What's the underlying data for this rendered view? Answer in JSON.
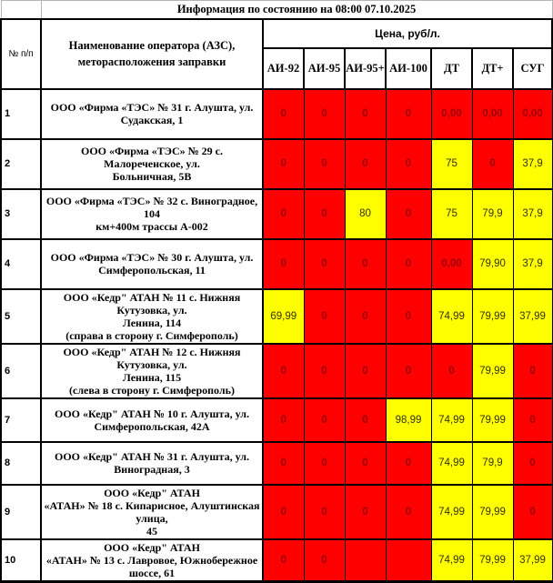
{
  "title": "Информация по состоянию на 08:00 07.10.2025",
  "header": {
    "num": "№ п/п",
    "name": "Наименование оператора (АЗС), меторасположения заправки",
    "price_group": "Цена, руб/л.",
    "fuels": [
      "АИ-92",
      "АИ-95",
      "АИ-95+",
      "АИ-100",
      "ДТ",
      "ДТ+",
      "СУГ"
    ]
  },
  "colors": {
    "unavailable_bg": "#FF0000",
    "unavailable_text": "#9C0006",
    "available_bg": "#FFFF00",
    "available_text": "#333300"
  },
  "rows": [
    {
      "num": "1",
      "name": "ООО «Фирма «ТЭС» № 31 г. Алушта, ул.\nСудакская, 1",
      "values": [
        {
          "v": "0",
          "s": "na"
        },
        {
          "v": "0",
          "s": "na"
        },
        {
          "v": "0",
          "s": "na"
        },
        {
          "v": "0",
          "s": "na"
        },
        {
          "v": "0,00",
          "s": "na"
        },
        {
          "v": "0,00",
          "s": "na"
        },
        {
          "v": "0,00",
          "s": "na"
        }
      ]
    },
    {
      "num": "2",
      "name": "ООО «Фирма «ТЭС» № 29 с. Малореченское, ул.\nБольничная, 5В",
      "values": [
        {
          "v": "0",
          "s": "na"
        },
        {
          "v": "0",
          "s": "na"
        },
        {
          "v": "0",
          "s": "na"
        },
        {
          "v": "0",
          "s": "na"
        },
        {
          "v": "75",
          "s": "ok"
        },
        {
          "v": "0",
          "s": "na"
        },
        {
          "v": "37,9",
          "s": "ok"
        }
      ]
    },
    {
      "num": "3",
      "name": "ООО «Фирма «ТЭС» № 32 с. Виноградное,   104\nкм+400м трассы А-002",
      "values": [
        {
          "v": "0",
          "s": "na"
        },
        {
          "v": "0",
          "s": "na"
        },
        {
          "v": "80",
          "s": "ok"
        },
        {
          "v": "0",
          "s": "na"
        },
        {
          "v": "75",
          "s": "ok"
        },
        {
          "v": "79,9",
          "s": "ok"
        },
        {
          "v": "37,9",
          "s": "ok"
        }
      ]
    },
    {
      "num": "4",
      "name": "ООО «Фирма «ТЭС» № 30 г. Алушта, ул.\nСимферопольская, 11",
      "values": [
        {
          "v": "0",
          "s": "na"
        },
        {
          "v": "0",
          "s": "na"
        },
        {
          "v": "0",
          "s": "na"
        },
        {
          "v": "0",
          "s": "na"
        },
        {
          "v": "0,00",
          "s": "na"
        },
        {
          "v": "79,90",
          "s": "ok"
        },
        {
          "v": "37,9",
          "s": "ok"
        }
      ]
    },
    {
      "num": "5",
      "name": "ООО «Кедр\" АТАН № 11 с. Нижняя Кутузовка, ул.\nЛенина, 114\n(справа в сторону г. Симферополь)",
      "values": [
        {
          "v": "69,99",
          "s": "ok"
        },
        {
          "v": "0",
          "s": "na"
        },
        {
          "v": "0",
          "s": "na"
        },
        {
          "v": "0",
          "s": "na"
        },
        {
          "v": "74,99",
          "s": "ok"
        },
        {
          "v": "79,99",
          "s": "ok"
        },
        {
          "v": "37,99",
          "s": "ok"
        }
      ]
    },
    {
      "num": "6",
      "name": "ООО «Кедр\" АТАН  № 12 с. Нижняя Кутузовка, ул.\nЛенина, 115\n(слева в сторону г. Симферополь)",
      "values": [
        {
          "v": "0",
          "s": "na"
        },
        {
          "v": "0",
          "s": "na"
        },
        {
          "v": "0",
          "s": "na"
        },
        {
          "v": "0",
          "s": "na"
        },
        {
          "v": "0",
          "s": "na"
        },
        {
          "v": "79,99",
          "s": "ok"
        },
        {
          "v": "0",
          "s": "na"
        }
      ]
    },
    {
      "num": "7",
      "name": "ООО «Кедр\" АТАН  № 10 г. Алушта, ул.\nСимферопольская, 42А",
      "values": [
        {
          "v": "0",
          "s": "na"
        },
        {
          "v": "0",
          "s": "na"
        },
        {
          "v": "0",
          "s": "na"
        },
        {
          "v": "98,99",
          "s": "ok"
        },
        {
          "v": "74,99",
          "s": "ok"
        },
        {
          "v": "79,99",
          "s": "ok"
        },
        {
          "v": "0",
          "s": "na"
        }
      ]
    },
    {
      "num": "8",
      "name": "ООО «Кедр\" АТАН  № 31 г. Алушта, ул.\nВиноградная, 3",
      "values": [
        {
          "v": "0",
          "s": "na"
        },
        {
          "v": "0",
          "s": "na"
        },
        {
          "v": "0",
          "s": "na"
        },
        {
          "v": "0",
          "s": "na"
        },
        {
          "v": "74,99",
          "s": "ok"
        },
        {
          "v": "79,9",
          "s": "ok"
        },
        {
          "v": "0",
          "s": "na"
        }
      ]
    },
    {
      "num": "9",
      "name": "ООО «Кедр\" АТАН\n«АТАН» № 18 с. Кипарисное, Алуштинская улица,\n45",
      "values": [
        {
          "v": "0",
          "s": "na"
        },
        {
          "v": "0",
          "s": "na"
        },
        {
          "v": "0",
          "s": "na"
        },
        {
          "v": "0",
          "s": "na"
        },
        {
          "v": "74,99",
          "s": "ok"
        },
        {
          "v": "79,99",
          "s": "ok"
        },
        {
          "v": "0",
          "s": "na"
        }
      ]
    },
    {
      "num": "10",
      "name": "ООО «Кедр\" АТАН\n«АТАН» № 13 с. Лавровое, Южнобережное шоссе, 61",
      "values": [
        {
          "v": "0",
          "s": "na"
        },
        {
          "v": "0",
          "s": "na"
        },
        {
          "v": "",
          "s": "na"
        },
        {
          "v": "",
          "s": "na"
        },
        {
          "v": "74,99",
          "s": "ok"
        },
        {
          "v": "79,99",
          "s": "ok"
        },
        {
          "v": "37,99",
          "s": "ok"
        }
      ]
    }
  ]
}
